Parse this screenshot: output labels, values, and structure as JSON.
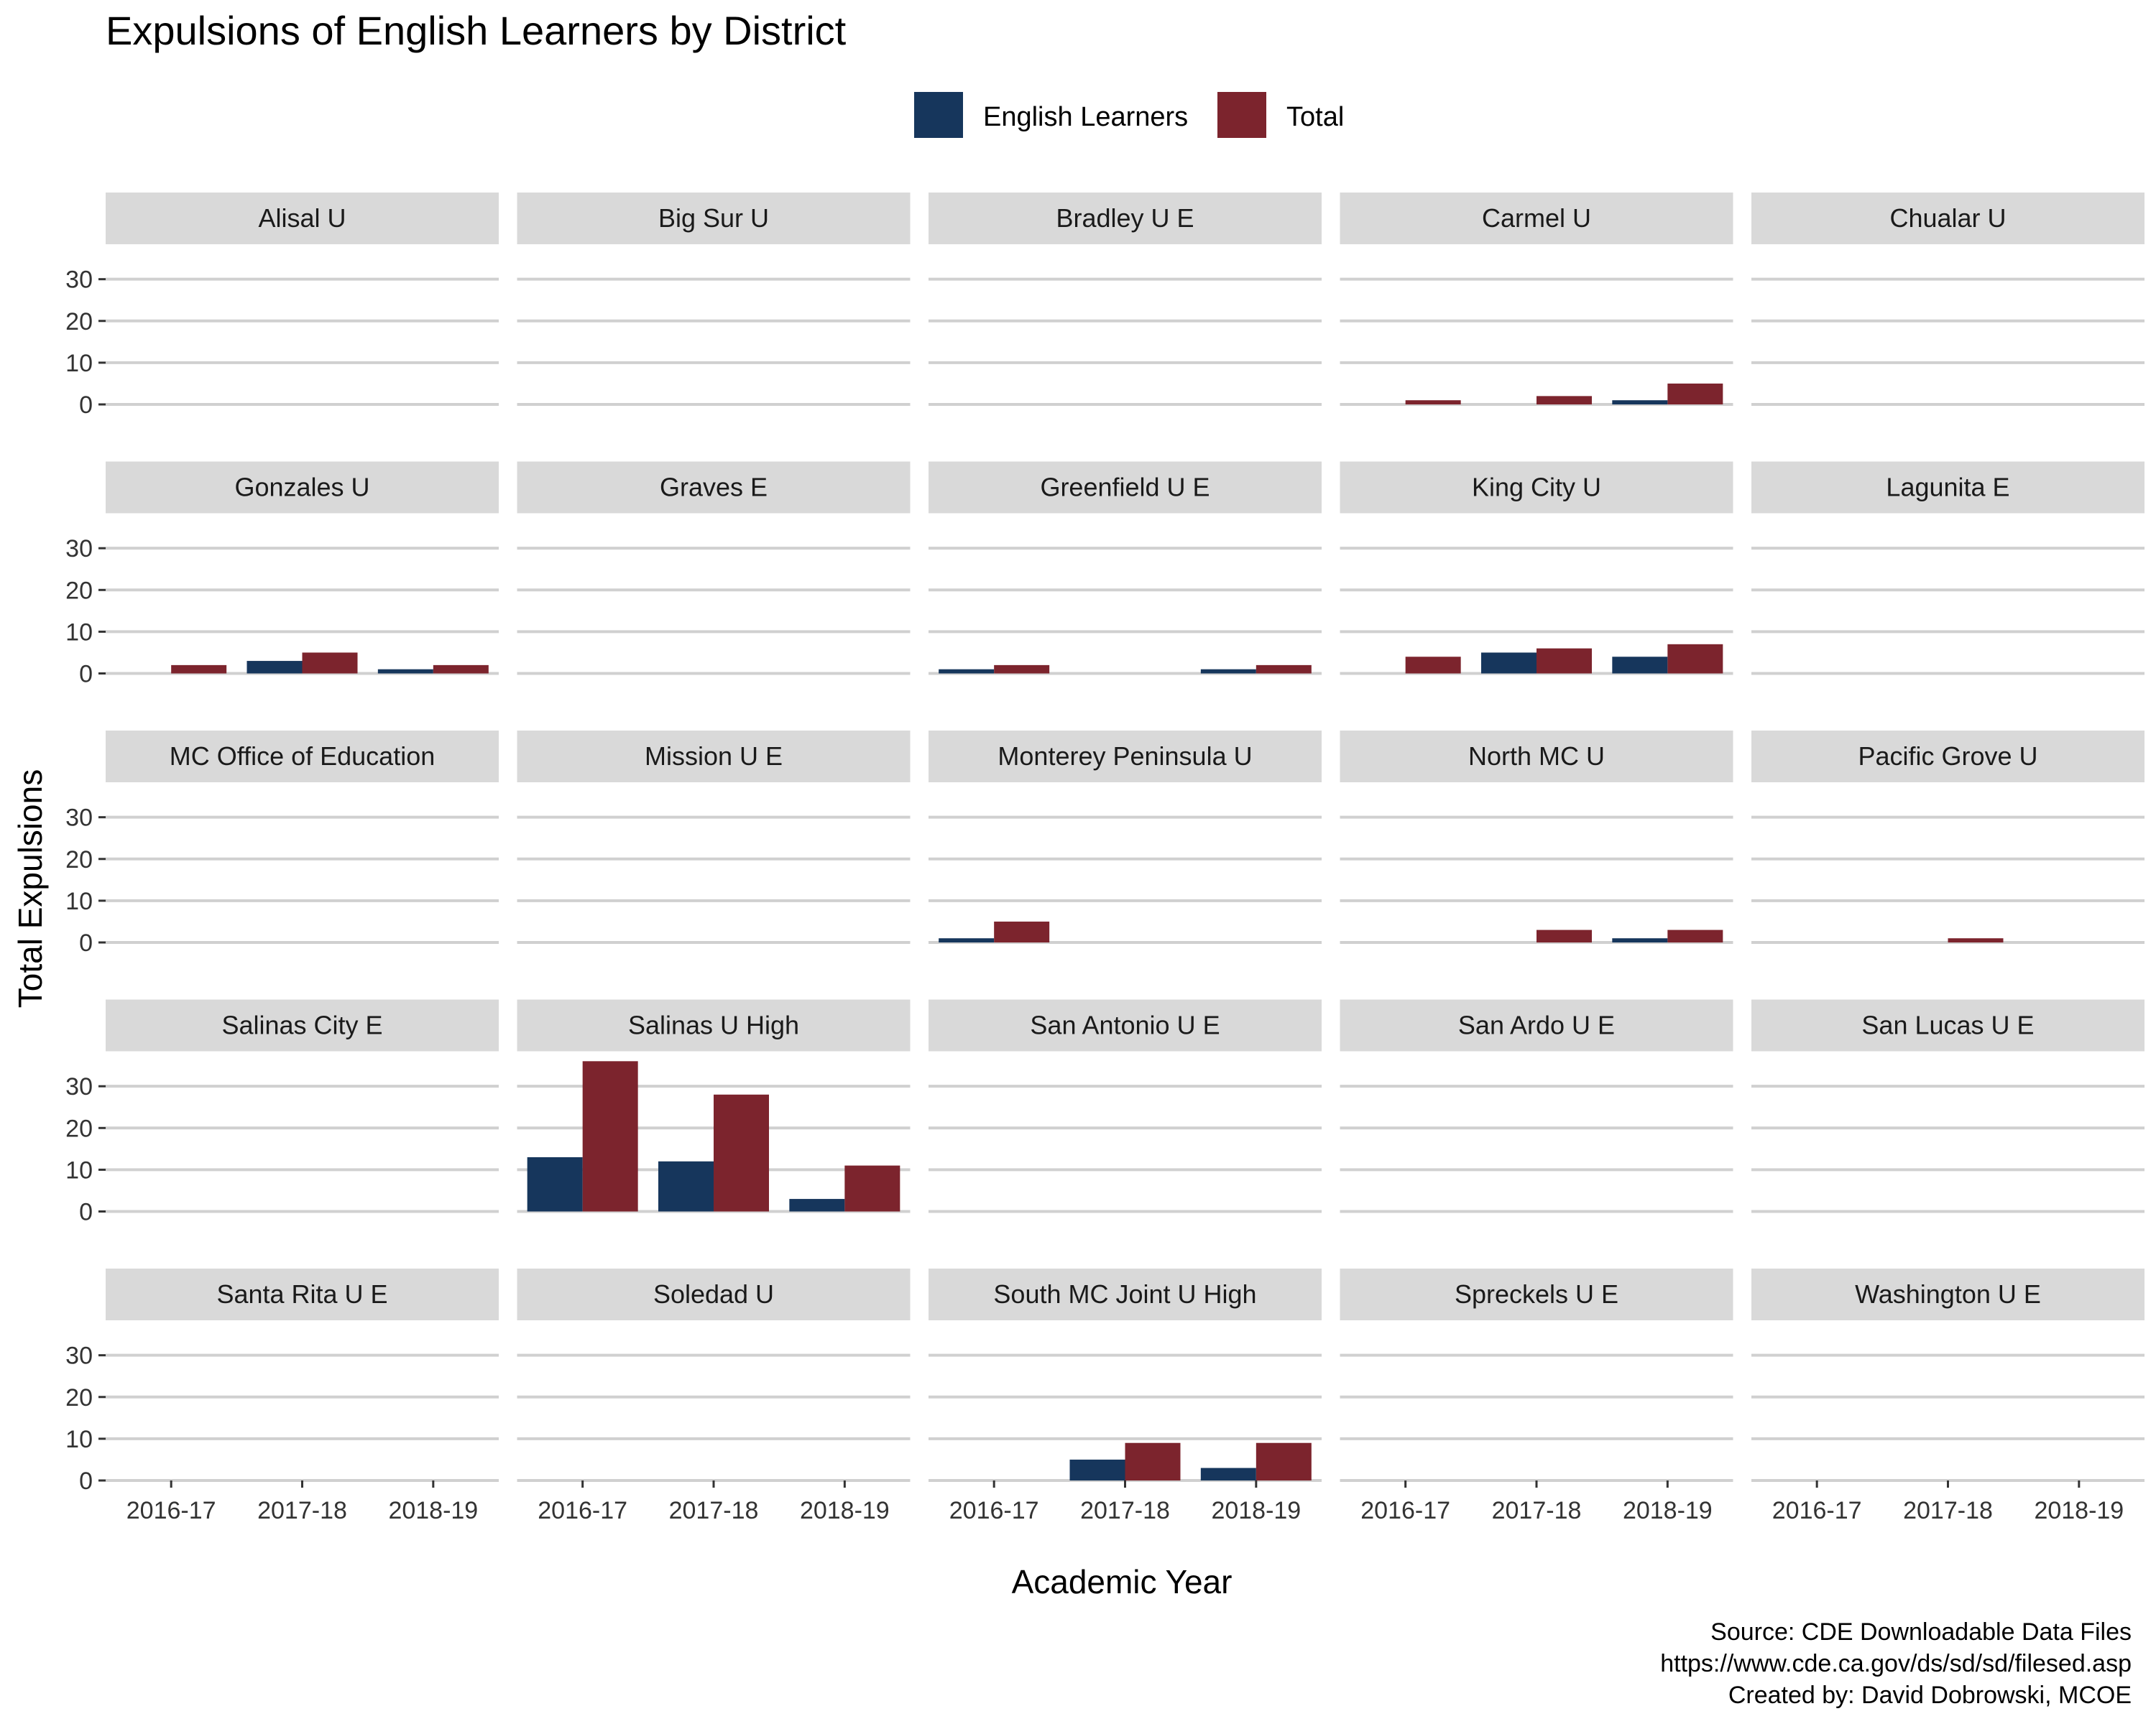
{
  "chart_data": {
    "type": "bar",
    "title": "Expulsions of English Learners by District",
    "xlabel": "Academic Year",
    "ylabel": "Total Expulsions",
    "categories": [
      "2016-17",
      "2017-18",
      "2018-19"
    ],
    "y_ticks": [
      0,
      10,
      20,
      30
    ],
    "ylim": [
      0,
      37
    ],
    "grid": true,
    "legend_position": "top",
    "series": [
      {
        "name": "English Learners",
        "color": "#16365c"
      },
      {
        "name": "Total",
        "color": "#7c242d"
      }
    ],
    "facets": [
      {
        "name": "Alisal U",
        "values": {
          "English Learners": [
            0,
            0,
            0
          ],
          "Total": [
            0,
            0,
            0
          ]
        }
      },
      {
        "name": "Big Sur U",
        "values": {
          "English Learners": [
            0,
            0,
            0
          ],
          "Total": [
            0,
            0,
            0
          ]
        }
      },
      {
        "name": "Bradley U E",
        "values": {
          "English Learners": [
            0,
            0,
            0
          ],
          "Total": [
            0,
            0,
            0
          ]
        }
      },
      {
        "name": "Carmel U",
        "values": {
          "English Learners": [
            0,
            0,
            1
          ],
          "Total": [
            1,
            2,
            5
          ]
        }
      },
      {
        "name": "Chualar U",
        "values": {
          "English Learners": [
            0,
            0,
            0
          ],
          "Total": [
            0,
            0,
            0
          ]
        }
      },
      {
        "name": "Gonzales U",
        "values": {
          "English Learners": [
            0,
            3,
            1
          ],
          "Total": [
            2,
            5,
            2
          ]
        }
      },
      {
        "name": "Graves E",
        "values": {
          "English Learners": [
            0,
            0,
            0
          ],
          "Total": [
            0,
            0,
            0
          ]
        }
      },
      {
        "name": "Greenfield U E",
        "values": {
          "English Learners": [
            1,
            0,
            1
          ],
          "Total": [
            2,
            0,
            2
          ]
        }
      },
      {
        "name": "King City U",
        "values": {
          "English Learners": [
            0,
            5,
            4
          ],
          "Total": [
            4,
            6,
            7
          ]
        }
      },
      {
        "name": "Lagunita E",
        "values": {
          "English Learners": [
            0,
            0,
            0
          ],
          "Total": [
            0,
            0,
            0
          ]
        }
      },
      {
        "name": "MC Office of Education",
        "values": {
          "English Learners": [
            0,
            0,
            0
          ],
          "Total": [
            0,
            0,
            0
          ]
        }
      },
      {
        "name": "Mission U E",
        "values": {
          "English Learners": [
            0,
            0,
            0
          ],
          "Total": [
            0,
            0,
            0
          ]
        }
      },
      {
        "name": "Monterey Peninsula U",
        "values": {
          "English Learners": [
            1,
            0,
            0
          ],
          "Total": [
            5,
            0,
            0
          ]
        }
      },
      {
        "name": "North MC U",
        "values": {
          "English Learners": [
            0,
            0,
            1
          ],
          "Total": [
            0,
            3,
            3
          ]
        }
      },
      {
        "name": "Pacific Grove U",
        "values": {
          "English Learners": [
            0,
            0,
            0
          ],
          "Total": [
            0,
            1,
            0
          ]
        }
      },
      {
        "name": "Salinas City E",
        "values": {
          "English Learners": [
            0,
            0,
            0
          ],
          "Total": [
            0,
            0,
            0
          ]
        }
      },
      {
        "name": "Salinas U High",
        "values": {
          "English Learners": [
            13,
            12,
            3
          ],
          "Total": [
            36,
            28,
            11
          ]
        }
      },
      {
        "name": "San Antonio U E",
        "values": {
          "English Learners": [
            0,
            0,
            0
          ],
          "Total": [
            0,
            0,
            0
          ]
        }
      },
      {
        "name": "San Ardo U E",
        "values": {
          "English Learners": [
            0,
            0,
            0
          ],
          "Total": [
            0,
            0,
            0
          ]
        }
      },
      {
        "name": "San Lucas U E",
        "values": {
          "English Learners": [
            0,
            0,
            0
          ],
          "Total": [
            0,
            0,
            0
          ]
        }
      },
      {
        "name": "Santa Rita U E",
        "values": {
          "English Learners": [
            0,
            0,
            0
          ],
          "Total": [
            0,
            0,
            0
          ]
        }
      },
      {
        "name": "Soledad U",
        "values": {
          "English Learners": [
            0,
            0,
            0
          ],
          "Total": [
            0,
            0,
            0
          ]
        }
      },
      {
        "name": "South MC Joint U High",
        "values": {
          "English Learners": [
            0,
            5,
            3
          ],
          "Total": [
            0,
            9,
            9
          ]
        }
      },
      {
        "name": "Spreckels U E",
        "values": {
          "English Learners": [
            0,
            0,
            0
          ],
          "Total": [
            0,
            0,
            0
          ]
        }
      },
      {
        "name": "Washington U E",
        "values": {
          "English Learners": [
            0,
            0,
            0
          ],
          "Total": [
            0,
            0,
            0
          ]
        }
      }
    ],
    "caption": [
      "Source: CDE Downloadable Data Files",
      "https://www.cde.ca.gov/ds/sd/sd/filesed.asp",
      "Created by: David Dobrowski, MCOE"
    ]
  }
}
